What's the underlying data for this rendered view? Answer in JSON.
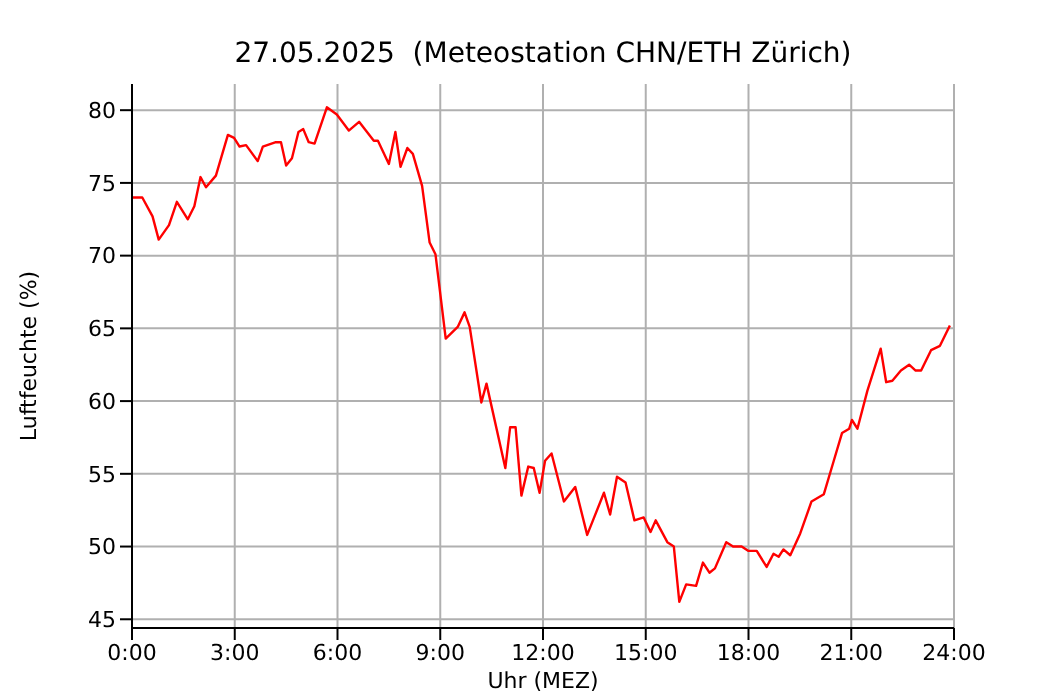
{
  "chart_data": {
    "type": "line",
    "title": "27.05.2025  (Meteostation CHN/ETH Zürich)",
    "xlabel": "Uhr (MEZ)",
    "ylabel": "Luftfeuchte (%)",
    "x": [
      0,
      0.3,
      0.6,
      0.78,
      1.08,
      1.31,
      1.63,
      1.82,
      2.0,
      2.16,
      2.45,
      2.8,
      2.98,
      3.14,
      3.33,
      3.67,
      3.82,
      4.2,
      4.35,
      4.5,
      4.67,
      4.86,
      5.0,
      5.16,
      5.33,
      5.69,
      5.98,
      6.33,
      6.63,
      7.06,
      7.18,
      7.5,
      7.69,
      7.84,
      8.04,
      8.2,
      8.47,
      8.69,
      8.86,
      9.16,
      9.51,
      9.71,
      9.86,
      10.2,
      10.35,
      10.9,
      11.04,
      11.2,
      11.37,
      11.57,
      11.73,
      11.9,
      12.06,
      12.25,
      12.61,
      12.94,
      13.29,
      13.78,
      13.96,
      14.16,
      14.41,
      14.67,
      14.94,
      15.14,
      15.29,
      15.63,
      15.82,
      15.98,
      16.18,
      16.47,
      16.67,
      16.86,
      17.02,
      17.35,
      17.55,
      17.8,
      18.0,
      18.24,
      18.53,
      18.73,
      18.88,
      19.02,
      19.22,
      19.51,
      19.84,
      20.2,
      20.49,
      20.73,
      20.94,
      21.02,
      21.18,
      21.47,
      21.86,
      22.02,
      22.2,
      22.45,
      22.69,
      22.88,
      23.04,
      23.33,
      23.59,
      23.88
    ],
    "series": [
      {
        "color": "#ff0000",
        "values": [
          74.0,
          74.0,
          72.7,
          71.1,
          72.1,
          73.7,
          72.5,
          73.4,
          75.4,
          74.7,
          75.5,
          78.3,
          78.1,
          77.5,
          77.6,
          76.5,
          77.5,
          77.8,
          77.8,
          76.2,
          76.7,
          78.5,
          78.7,
          77.8,
          77.7,
          80.2,
          79.7,
          78.6,
          79.2,
          77.9,
          77.9,
          76.3,
          78.5,
          76.1,
          77.4,
          77.0,
          74.8,
          70.9,
          70.1,
          64.3,
          65.1,
          66.1,
          65.1,
          59.9,
          61.2,
          55.4,
          58.2,
          58.2,
          53.5,
          55.5,
          55.4,
          53.7,
          55.9,
          56.4,
          53.1,
          54.1,
          50.8,
          53.7,
          52.2,
          54.8,
          54.4,
          51.8,
          52.0,
          51.0,
          51.8,
          50.3,
          50.0,
          46.2,
          47.4,
          47.3,
          48.9,
          48.2,
          48.5,
          50.3,
          50.0,
          50.0,
          49.7,
          49.7,
          48.6,
          49.5,
          49.3,
          49.8,
          49.4,
          50.9,
          53.1,
          53.6,
          55.9,
          57.8,
          58.1,
          58.7,
          58.1,
          60.7,
          63.6,
          61.3,
          61.4,
          62.1,
          62.5,
          62.1,
          62.1,
          63.5,
          63.8,
          65.2
        ]
      }
    ],
    "xlim": [
      0,
      24
    ],
    "xticks": [
      {
        "value": 0,
        "label": "0:00"
      },
      {
        "value": 3,
        "label": "3:00"
      },
      {
        "value": 6,
        "label": "6:00"
      },
      {
        "value": 9,
        "label": "9:00"
      },
      {
        "value": 12,
        "label": "12:00"
      },
      {
        "value": 15,
        "label": "15:00"
      },
      {
        "value": 18,
        "label": "18:00"
      },
      {
        "value": 21,
        "label": "21:00"
      },
      {
        "value": 24,
        "label": "24:00"
      }
    ],
    "ylim": [
      44.4,
      81.8
    ],
    "yticks": [
      45,
      50,
      55,
      60,
      65,
      70,
      75,
      80
    ],
    "grid": true,
    "marker": "none",
    "line_style": "solid"
  }
}
